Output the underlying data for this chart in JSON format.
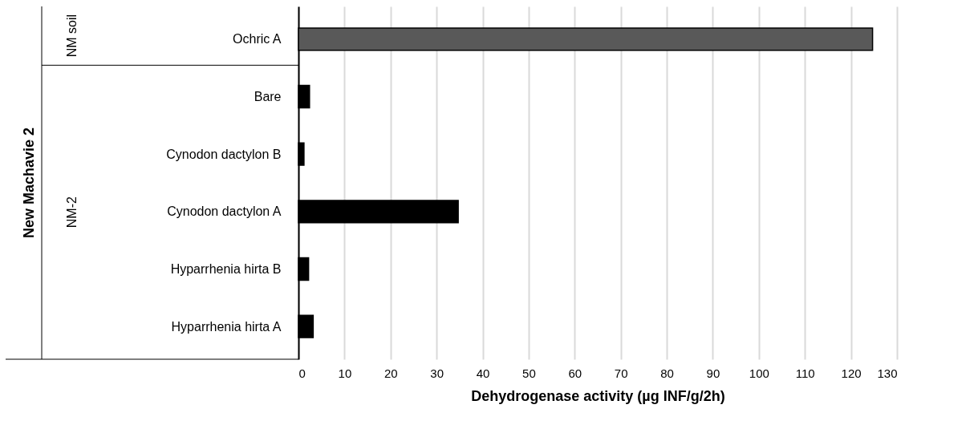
{
  "chart_data": {
    "type": "bar",
    "orientation": "horizontal",
    "xlabel": "Dehydrogenase activity (µg INF/g/2h)",
    "categories": [
      "Ochric A",
      "Bare",
      "Cynodon dactylon B",
      "Cynodon dactylon A",
      "Hyparrhenia hirta B",
      "Hyparrhenia hirta A"
    ],
    "values": [
      124.7,
      2.4,
      1.2,
      34.7,
      2.2,
      3.2
    ],
    "colors": [
      "#595959",
      "#000000",
      "#000000",
      "#000000",
      "#000000",
      "#000000"
    ],
    "xlim": [
      0,
      130
    ],
    "xticks": [
      0,
      10,
      20,
      30,
      40,
      50,
      60,
      70,
      80,
      90,
      100,
      110,
      120,
      130
    ],
    "grid": "x",
    "annotations": [
      "New Machavie 2",
      "NM soil",
      "NM-2"
    ]
  }
}
